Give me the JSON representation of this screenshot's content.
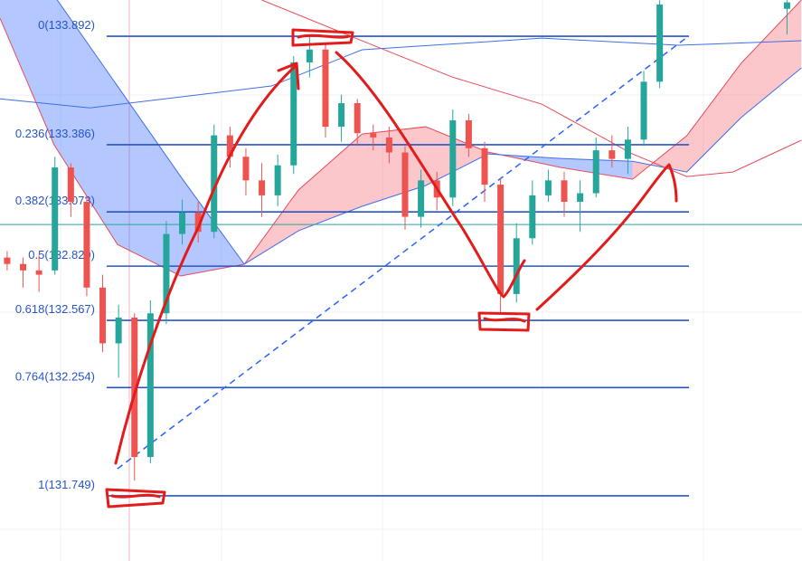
{
  "chart_data": {
    "type": "candlestick",
    "xlim": [
      -0.45,
      49.94
    ],
    "ylim": [
      131.445,
      134.061
    ],
    "x": [
      0,
      1,
      2,
      3,
      4,
      5,
      6,
      7,
      8,
      9,
      10,
      11,
      12,
      13,
      14,
      15,
      16,
      17,
      18,
      19,
      20,
      21,
      22,
      23,
      24,
      25,
      26,
      27,
      28,
      29,
      30,
      31,
      32,
      33,
      34,
      35,
      36,
      37,
      38,
      39,
      40,
      41,
      49
    ],
    "open": [
      132.86,
      132.83,
      132.8,
      132.8,
      133.28,
      133.12,
      132.72,
      132.46,
      132.58,
      131.93,
      132.6,
      132.97,
      133.07,
      132.98,
      133.43,
      133.33,
      133.22,
      133.15,
      133.29,
      133.77,
      133.83,
      133.47,
      133.58,
      133.44,
      133.42,
      133.35,
      133.05,
      133.22,
      133.14,
      133.5,
      133.37,
      133.2,
      132.69,
      132.95,
      133.15,
      133.22,
      133.12,
      133.16,
      133.36,
      133.32,
      133.41,
      133.68,
      134.02
    ],
    "high": [
      132.89,
      132.86,
      132.87,
      133.33,
      133.3,
      133.15,
      132.78,
      132.64,
      132.6,
      132.66,
      133.03,
      133.13,
      133.12,
      133.48,
      133.47,
      133.37,
      133.3,
      133.34,
      133.8,
      133.89,
      133.86,
      133.62,
      133.6,
      133.48,
      133.47,
      133.38,
      133.27,
      133.26,
      133.55,
      133.53,
      133.4,
      133.23,
      133.02,
      133.22,
      133.27,
      133.26,
      133.22,
      133.42,
      133.43,
      133.47,
      133.73,
      134.06,
      134.06
    ],
    "low": [
      132.8,
      132.72,
      132.7,
      132.78,
      133.05,
      132.68,
      132.42,
      132.3,
      131.82,
      131.9,
      132.55,
      132.92,
      132.93,
      132.95,
      133.28,
      133.15,
      133.05,
      133.1,
      133.25,
      133.7,
      133.42,
      133.4,
      133.38,
      133.36,
      133.3,
      132.99,
      133.0,
      133.08,
      133.1,
      133.33,
      133.12,
      132.6,
      132.65,
      132.92,
      133.12,
      133.05,
      132.98,
      133.14,
      133.28,
      133.25,
      133.38,
      133.65,
      133.9
    ],
    "close": [
      132.83,
      132.8,
      132.78,
      133.28,
      133.12,
      132.72,
      132.46,
      132.58,
      131.93,
      132.6,
      132.97,
      133.07,
      132.98,
      133.43,
      133.33,
      133.22,
      133.15,
      133.29,
      133.77,
      133.83,
      133.47,
      133.58,
      133.44,
      133.42,
      133.35,
      133.05,
      133.22,
      133.14,
      133.5,
      133.37,
      133.2,
      132.69,
      132.95,
      133.15,
      133.22,
      133.12,
      133.16,
      133.36,
      133.32,
      133.41,
      133.68,
      134.04,
      134.05
    ],
    "colors": {
      "up": "#26a69a",
      "down": "#ef5350"
    },
    "fib_levels": [
      {
        "value": 133.892,
        "label": "0(133.892)"
      },
      {
        "value": 133.386,
        "label": "0.236(133.386)"
      },
      {
        "value": 133.073,
        "label": "0.382(133.073)"
      },
      {
        "value": 132.82,
        "label": "0.5(132.820)"
      },
      {
        "value": 132.567,
        "label": "0.618(132.567)"
      },
      {
        "value": 132.254,
        "label": "0.764(132.254)"
      },
      {
        "value": 131.749,
        "label": "1(131.749)"
      }
    ],
    "fib_color": "#2754c5",
    "fib_range_x": [
      6.25,
      42.84
    ],
    "trend_line": {
      "x": [
        6.93,
        42.8
      ],
      "values": [
        131.875,
        133.892
      ],
      "color": "#2962ff"
    },
    "last_price": {
      "value": 133.014,
      "color": "#26a69a"
    },
    "cloud": {
      "x": [
        -0.45,
        2.95,
        6.93,
        10.9,
        14.9,
        18.3,
        22.3,
        26.3,
        30.2,
        34.8,
        39.3,
        42.7,
        46.1,
        49.9
      ],
      "span_a": [
        133.976,
        133.386,
        132.921,
        132.774,
        132.829,
        133.175,
        133.436,
        133.47,
        133.352,
        133.28,
        133.225,
        133.428,
        133.765,
        134.061
      ],
      "span_b": [
        134.441,
        134.082,
        133.66,
        133.238,
        132.829,
        132.985,
        133.099,
        133.196,
        133.343,
        133.322,
        133.309,
        133.259,
        133.512,
        133.744
      ],
      "color_a": "#e84a5a",
      "color_b": "#3f6ee8",
      "fill_a": "rgba(242,54,69,0.28)",
      "fill_b": "rgba(41,98,255,0.35)"
    },
    "lines": [
      {
        "color": "#3f6ee8",
        "x": [
          -0.45,
          5.2,
          16.6,
          22.3,
          33.6,
          42.2,
          49.9
        ],
        "values": [
          133.6,
          133.558,
          133.66,
          133.829,
          133.883,
          133.85,
          133.871
        ]
      },
      {
        "color": "#e84a5a",
        "x": [
          16.0,
          22.3,
          27.95,
          33.6,
          39.3,
          42.7,
          45.6,
          49.9
        ],
        "values": [
          134.061,
          133.871,
          133.702,
          133.575,
          133.343,
          133.238,
          133.259,
          133.407
        ]
      }
    ]
  }
}
